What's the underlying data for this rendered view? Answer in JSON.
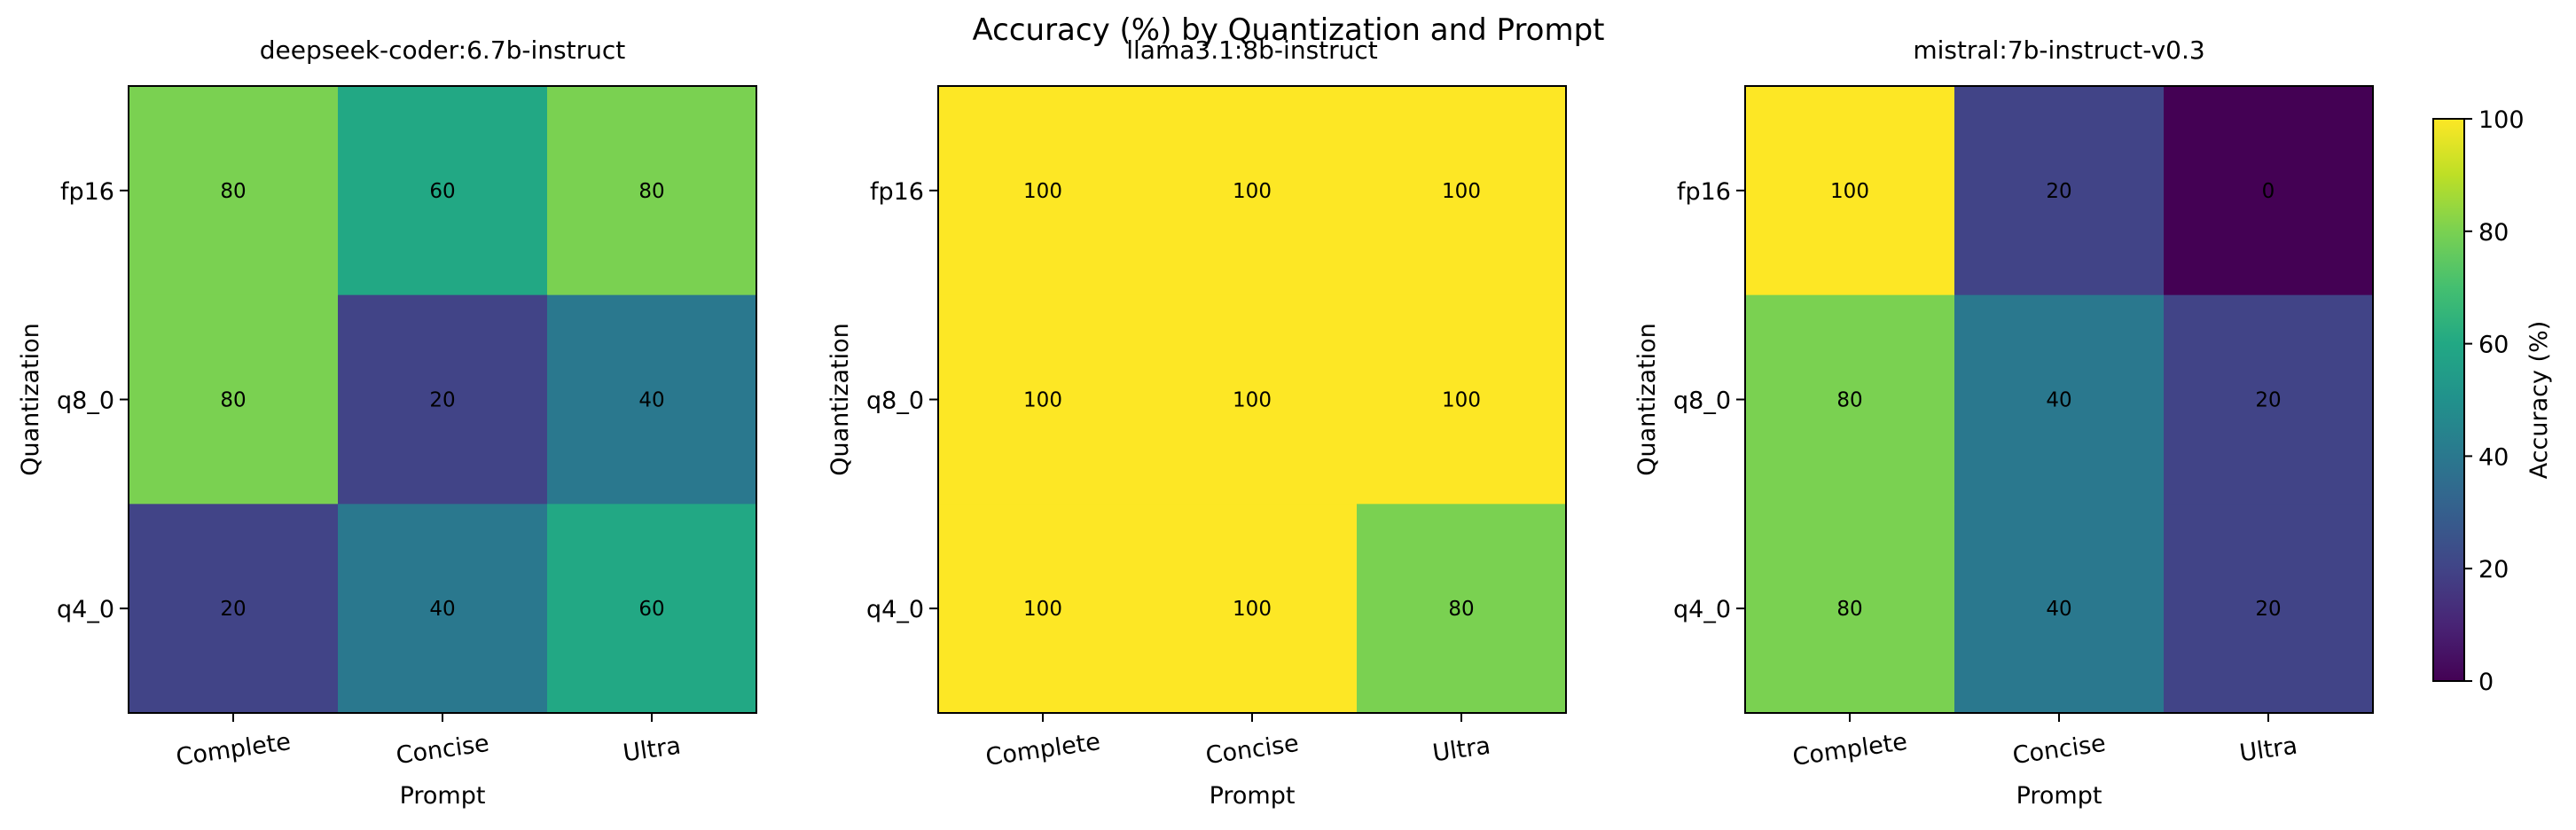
{
  "chart_data": {
    "type": "heatmap",
    "title": "Accuracy (%) by Quantization and Prompt",
    "colormap": "viridis",
    "vmin": 0,
    "vmax": 100,
    "colorbar": {
      "label": "Accuracy (%)",
      "ticks": [
        "0",
        "20",
        "40",
        "60",
        "80",
        "100"
      ]
    },
    "panels": [
      {
        "title": "deepseek-coder:6.7b-instruct",
        "xlabel": "Prompt",
        "ylabel": "Quantization",
        "x": [
          "Complete",
          "Concise",
          "Ultra"
        ],
        "y": [
          "fp16",
          "q8_0",
          "q4_0"
        ],
        "values": [
          [
            80,
            60,
            80
          ],
          [
            80,
            20,
            40
          ],
          [
            20,
            40,
            60
          ]
        ]
      },
      {
        "title": "llama3.1:8b-instruct",
        "xlabel": "Prompt",
        "ylabel": "Quantization",
        "x": [
          "Complete",
          "Concise",
          "Ultra"
        ],
        "y": [
          "fp16",
          "q8_0",
          "q4_0"
        ],
        "values": [
          [
            100,
            100,
            100
          ],
          [
            100,
            100,
            100
          ],
          [
            100,
            100,
            80
          ]
        ]
      },
      {
        "title": "mistral:7b-instruct-v0.3",
        "xlabel": "Prompt",
        "ylabel": "Quantization",
        "x": [
          "Complete",
          "Concise",
          "Ultra"
        ],
        "y": [
          "fp16",
          "q8_0",
          "q4_0"
        ],
        "values": [
          [
            100,
            20,
            0
          ],
          [
            80,
            40,
            20
          ],
          [
            80,
            40,
            20
          ]
        ]
      }
    ]
  }
}
